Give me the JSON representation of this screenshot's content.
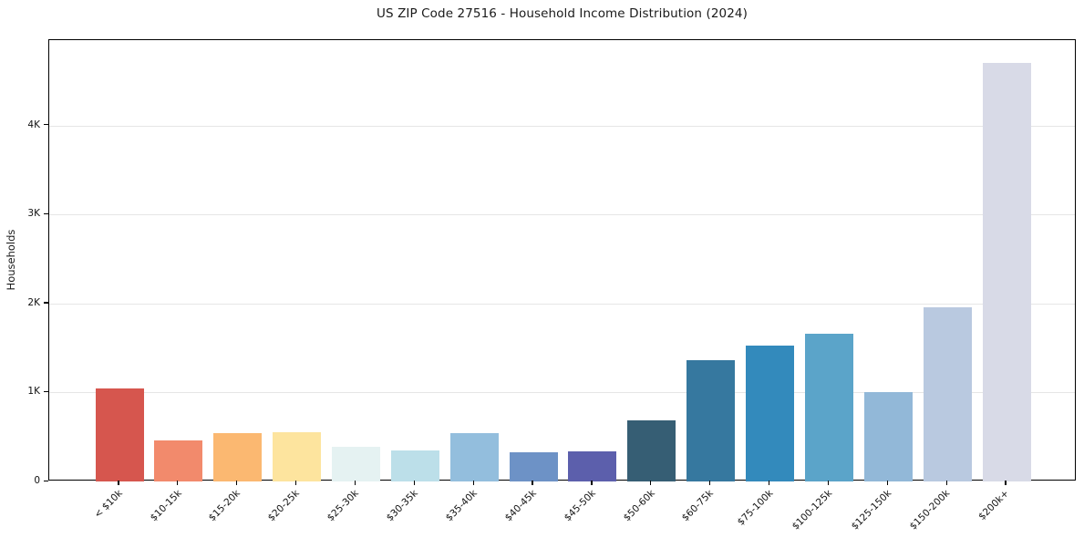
{
  "title": "US ZIP Code 27516 - Household Income Distribution (2024)",
  "chart_data": {
    "type": "bar",
    "title": "US ZIP Code 27516 - Household Income Distribution (2024)",
    "xlabel": "",
    "ylabel": "Households",
    "legend": "none",
    "grid": "horizontal",
    "ylim": [
      0,
      4960
    ],
    "yticks": [
      {
        "value": 0,
        "label": "0"
      },
      {
        "value": 1000,
        "label": "1K"
      },
      {
        "value": 2000,
        "label": "2K"
      },
      {
        "value": 3000,
        "label": "3K"
      },
      {
        "value": 4000,
        "label": "4K"
      }
    ],
    "categories": [
      "< $10k",
      "$10-15k",
      "$15-20k",
      "$20-25k",
      "$25-30k",
      "$30-35k",
      "$35-40k",
      "$40-45k",
      "$45-50k",
      "$50-60k",
      "$60-75k",
      "$75-100k",
      "$100-125k",
      "$125-150k",
      "$150-200k",
      "$200k+"
    ],
    "values": [
      1050,
      460,
      540,
      555,
      390,
      345,
      540,
      330,
      340,
      690,
      1360,
      1530,
      1665,
      1000,
      1960,
      4700
    ],
    "bar_colors": [
      "#d6564e",
      "#f28a6c",
      "#fbb871",
      "#fde49e",
      "#e5f2f2",
      "#bcdfe9",
      "#93bedd",
      "#6d92c6",
      "#5c5fac",
      "#365e74",
      "#36789f",
      "#338abc",
      "#5ba4c9",
      "#92b8d8",
      "#b9c9e0",
      "#d8dae7"
    ],
    "axis_color": "#000000",
    "grid_color": "#e6e6e6"
  }
}
